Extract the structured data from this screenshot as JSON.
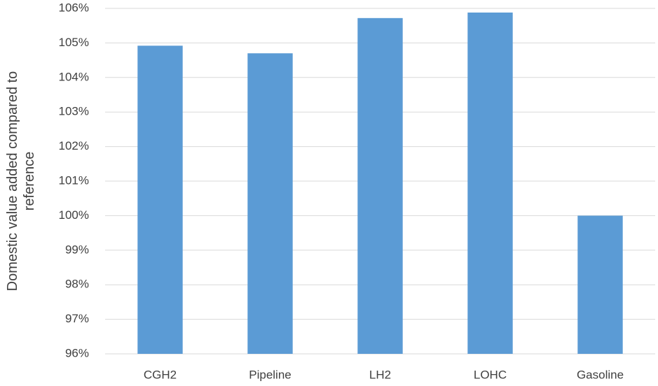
{
  "chart_data": {
    "type": "bar",
    "y_axis_label": "Domestic value added compared to reference",
    "categories": [
      "CGH2",
      "Pipeline",
      "LH2",
      "LOHC",
      "Gasoline"
    ],
    "values": [
      104.92,
      104.7,
      105.72,
      105.88,
      100.0
    ],
    "color": "#5b9bd5",
    "ylim": [
      96,
      106
    ],
    "yticks": [
      {
        "value": 96,
        "label": "96%"
      },
      {
        "value": 97,
        "label": "97%"
      },
      {
        "value": 98,
        "label": "98%"
      },
      {
        "value": 99,
        "label": "99%"
      },
      {
        "value": 100,
        "label": "100%"
      },
      {
        "value": 101,
        "label": "101%"
      },
      {
        "value": 102,
        "label": "102%"
      },
      {
        "value": 103,
        "label": "103%"
      },
      {
        "value": 104,
        "label": "104%"
      },
      {
        "value": 105,
        "label": "105%"
      },
      {
        "value": 106,
        "label": "106%"
      }
    ],
    "grid": true
  }
}
